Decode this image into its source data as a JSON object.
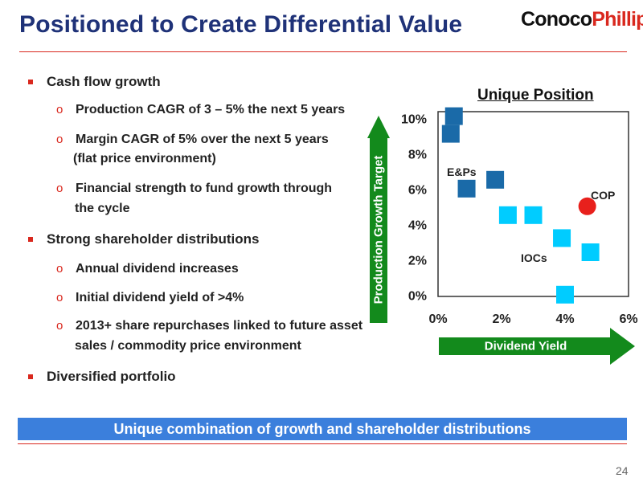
{
  "title": "Positioned to Create Differential Value",
  "logo": {
    "part1": "Conoco",
    "part2": "Phillips"
  },
  "bullets": [
    {
      "text": "Cash flow growth",
      "sub": [
        {
          "lines": [
            "Production CAGR of 3 – 5% the next 5 years"
          ]
        },
        {
          "lines": [
            "Margin CAGR of 5% over the next 5 years",
            "(flat price environment)"
          ]
        },
        {
          "lines": [
            "Financial strength to fund growth through",
            "the cycle"
          ]
        }
      ]
    },
    {
      "text": "Strong shareholder distributions",
      "sub": [
        {
          "lines": [
            "Annual dividend increases"
          ]
        },
        {
          "lines": [
            "Initial dividend yield of >4%"
          ]
        },
        {
          "lines": [
            "2013+ share repurchases linked to future asset",
            "sales / commodity price environment"
          ]
        }
      ]
    },
    {
      "text": "Diversified portfolio",
      "sub": []
    }
  ],
  "banner": "Unique combination of growth and shareholder distributions",
  "page_number": "24",
  "colors": {
    "title": "#1f3278",
    "accent_red": "#d9281e",
    "banner": "#3b7fdc",
    "arrow_green": "#138a1c",
    "ep": "#1a6aa8",
    "ioc": "#00ccff",
    "cop": "#e8201c"
  },
  "chart_data": {
    "type": "scatter",
    "title": "Unique Position",
    "xlabel": "Dividend Yield",
    "ylabel": "Production Growth Target",
    "xlim": [
      0,
      6
    ],
    "ylim": [
      0,
      10
    ],
    "x_ticks": [
      "0%",
      "2%",
      "4%",
      "6%"
    ],
    "y_ticks": [
      "0%",
      "2%",
      "4%",
      "6%",
      "8%",
      "10%"
    ],
    "grid": false,
    "series": [
      {
        "name": "E&Ps",
        "points": [
          {
            "x": 0.5,
            "y": 10.2
          },
          {
            "x": 0.4,
            "y": 9.2
          },
          {
            "x": 0.9,
            "y": 6.1
          },
          {
            "x": 1.8,
            "y": 6.6
          }
        ]
      },
      {
        "name": "IOCs",
        "points": [
          {
            "x": 2.2,
            "y": 4.6
          },
          {
            "x": 3.0,
            "y": 4.6
          },
          {
            "x": 3.9,
            "y": 3.3
          },
          {
            "x": 4.8,
            "y": 2.5
          },
          {
            "x": 4.0,
            "y": 0.1
          }
        ]
      },
      {
        "name": "COP",
        "points": [
          {
            "x": 4.7,
            "y": 5.1
          }
        ]
      }
    ]
  }
}
